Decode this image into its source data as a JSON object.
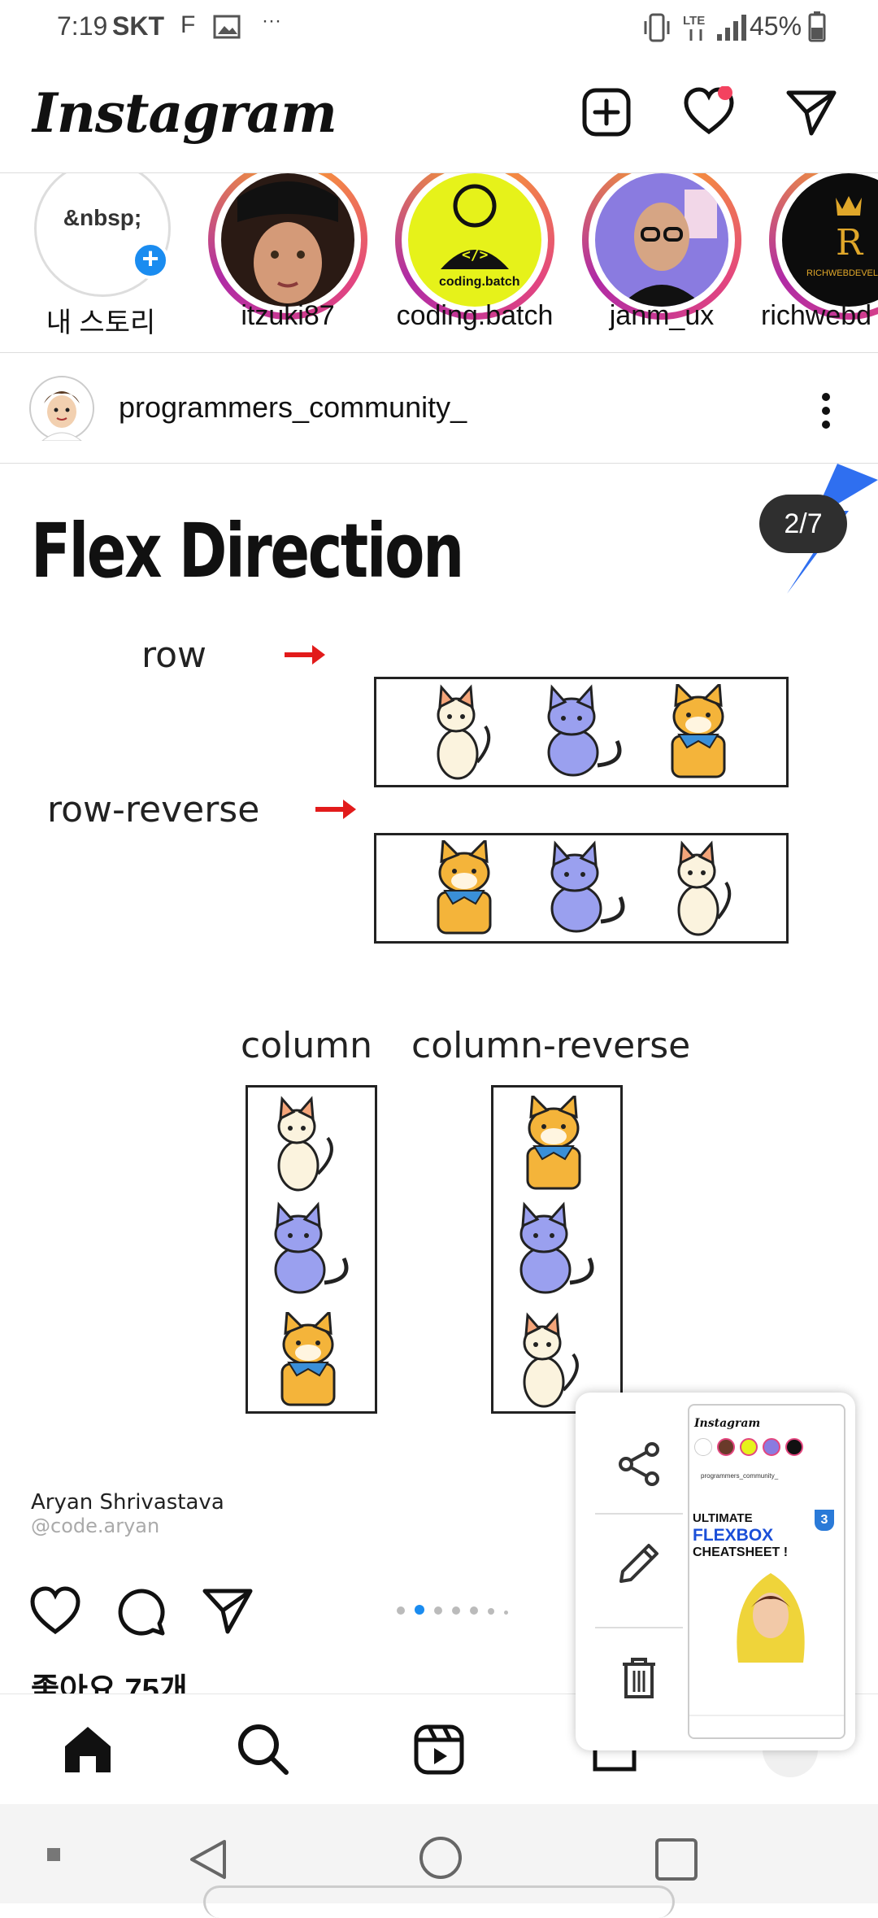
{
  "status_bar": {
    "time": "7:19",
    "carrier": "SKT",
    "battery": "45%"
  },
  "header": {
    "logo": "Instagram"
  },
  "stories": [
    {
      "label": "내 스토리",
      "placeholder": "&nbsp;"
    },
    {
      "label": "itzuki87"
    },
    {
      "label": "coding.batch",
      "badge_text": "coding.batch"
    },
    {
      "label": "janm_ux"
    },
    {
      "label": "richwebd",
      "badge_text": "RICHWEBDEVELO"
    }
  ],
  "post": {
    "username": "programmers_community_",
    "counter": "2/7",
    "slide": {
      "title": "Flex Direction",
      "row_label": "row",
      "row_reverse_label": "row-reverse",
      "column_label": "column",
      "column_reverse_label": "column-reverse",
      "author_name": "Aryan Shrivastava",
      "author_handle": "@code.aryan"
    },
    "likes": "좋아요 75개",
    "carousel": {
      "count": 7,
      "active_index": 1
    }
  },
  "popup": {
    "thumb_logo": "Instagram",
    "thumb_username": "programmers_community_",
    "thumb_line1": "ULTIMATE",
    "thumb_line2": "FLEXBOX",
    "thumb_line3": "CHEATSHEET !",
    "thumb_badge": "3"
  },
  "colors": {
    "accent_blue": "#1a8cf0",
    "notification_red": "#f3425f",
    "arrow_red": "#e21b1b"
  }
}
